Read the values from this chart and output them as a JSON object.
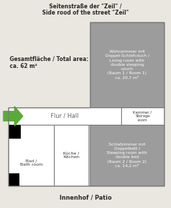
{
  "title_top": "Seitenstraße der \"Zeil\" /\nSide rood of the street \"Zeil\"",
  "title_bottom": "Innenhof / Patio",
  "total_area_text": "Gesamtfläche / Total area:\nca. 62 m²",
  "bg_color": "#eae7e0",
  "gray_color": "#9c9c9c",
  "white_color": "#ffffff",
  "black_color": "#000000",
  "green_color": "#5aaa3a",
  "room1_text": "Wohnzimmer mit\nDoppel-Schlafcouch /\nLiving room with\ndouble sleeping\ncouch\n(Raum 1 / Room 1)\nca. 20,7 m²",
  "kammer_text": "Kammer /\nStorage\nroom",
  "hall_text": "Flur / Hall",
  "bad_text": "Bad /\nBath room",
  "kuche_text": "Küche /\nKitchen",
  "room2_text": "Schlafzimmer mit\nDoppelbett /\nSleeping room with\ndouble bed\n(Raum 2 / Room 2)\nca. 14,2 m²",
  "edge_color": "#777777"
}
